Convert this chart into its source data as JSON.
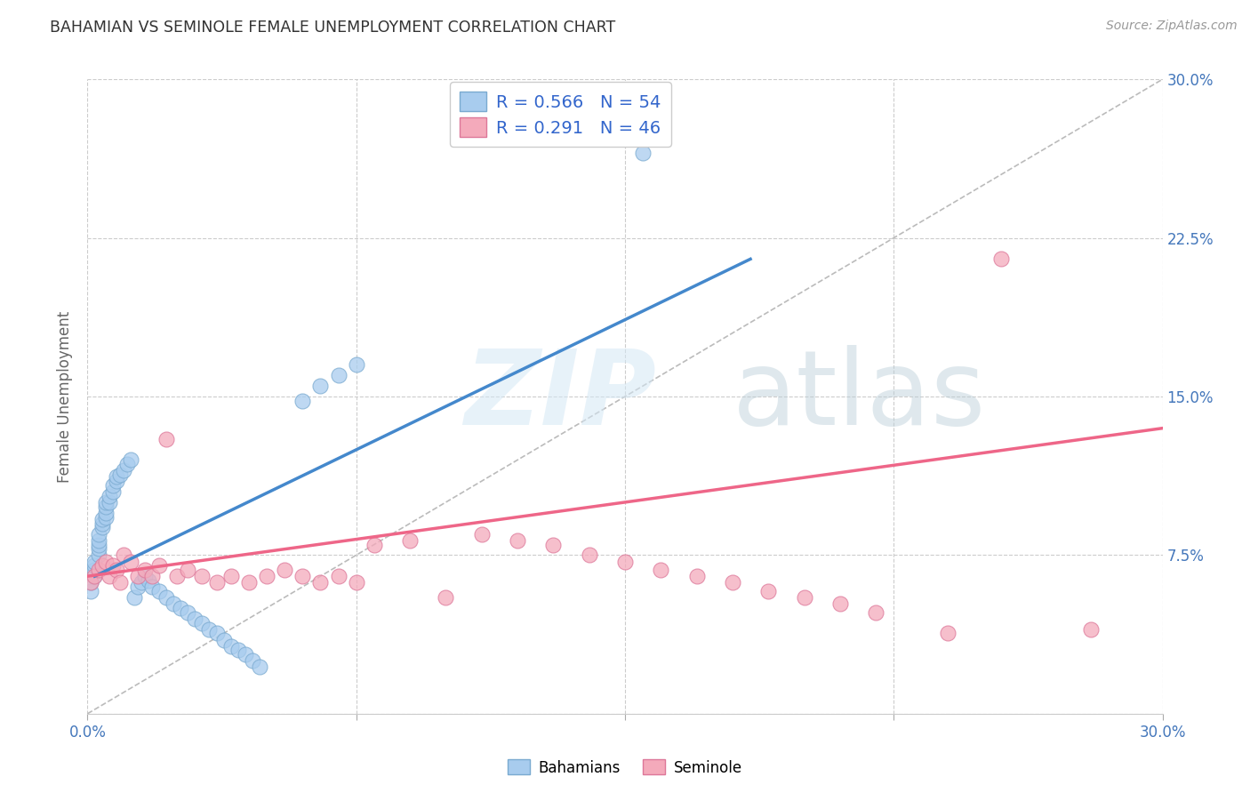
{
  "title": "BAHAMIAN VS SEMINOLE FEMALE UNEMPLOYMENT CORRELATION CHART",
  "source": "Source: ZipAtlas.com",
  "ylabel": "Female Unemployment",
  "color_blue": "#A8CCEE",
  "color_blue_edge": "#7AAAD0",
  "color_blue_line": "#4488CC",
  "color_pink": "#F4AABB",
  "color_pink_edge": "#DD7799",
  "color_pink_line": "#EE6688",
  "color_legend_text": "#3366CC",
  "color_title": "#333333",
  "color_grid": "#CCCCCC",
  "color_ref_line": "#BBBBBB",
  "color_source": "#999999",
  "color_right_axis": "#4477BB",
  "legend_R1": "R = 0.566",
  "legend_N1": "N = 54",
  "legend_R2": "R = 0.291",
  "legend_N2": "N = 46",
  "legend_label1": "Bahamians",
  "legend_label2": "Seminole",
  "bahamian_x": [
    0.001,
    0.001,
    0.002,
    0.002,
    0.002,
    0.002,
    0.003,
    0.003,
    0.003,
    0.003,
    0.003,
    0.004,
    0.004,
    0.004,
    0.005,
    0.005,
    0.005,
    0.005,
    0.006,
    0.006,
    0.007,
    0.007,
    0.008,
    0.008,
    0.009,
    0.01,
    0.011,
    0.012,
    0.013,
    0.014,
    0.015,
    0.016,
    0.017,
    0.018,
    0.02,
    0.022,
    0.024,
    0.026,
    0.028,
    0.03,
    0.032,
    0.034,
    0.036,
    0.038,
    0.04,
    0.042,
    0.044,
    0.046,
    0.048,
    0.06,
    0.065,
    0.07,
    0.075,
    0.155
  ],
  "bahamian_y": [
    0.058,
    0.062,
    0.065,
    0.068,
    0.07,
    0.072,
    0.075,
    0.078,
    0.08,
    0.082,
    0.085,
    0.088,
    0.09,
    0.092,
    0.093,
    0.095,
    0.098,
    0.1,
    0.1,
    0.103,
    0.105,
    0.108,
    0.11,
    0.112,
    0.113,
    0.115,
    0.118,
    0.12,
    0.055,
    0.06,
    0.062,
    0.065,
    0.063,
    0.06,
    0.058,
    0.055,
    0.052,
    0.05,
    0.048,
    0.045,
    0.043,
    0.04,
    0.038,
    0.035,
    0.032,
    0.03,
    0.028,
    0.025,
    0.022,
    0.148,
    0.155,
    0.16,
    0.165,
    0.265
  ],
  "seminole_x": [
    0.001,
    0.002,
    0.003,
    0.004,
    0.005,
    0.006,
    0.007,
    0.008,
    0.009,
    0.01,
    0.012,
    0.014,
    0.016,
    0.018,
    0.02,
    0.022,
    0.025,
    0.028,
    0.032,
    0.036,
    0.04,
    0.045,
    0.05,
    0.055,
    0.06,
    0.065,
    0.07,
    0.075,
    0.08,
    0.09,
    0.1,
    0.11,
    0.12,
    0.13,
    0.14,
    0.15,
    0.16,
    0.17,
    0.18,
    0.19,
    0.2,
    0.21,
    0.22,
    0.24,
    0.255,
    0.28
  ],
  "seminole_y": [
    0.062,
    0.065,
    0.068,
    0.07,
    0.072,
    0.065,
    0.07,
    0.068,
    0.062,
    0.075,
    0.072,
    0.065,
    0.068,
    0.065,
    0.07,
    0.13,
    0.065,
    0.068,
    0.065,
    0.062,
    0.065,
    0.062,
    0.065,
    0.068,
    0.065,
    0.062,
    0.065,
    0.062,
    0.08,
    0.082,
    0.055,
    0.085,
    0.082,
    0.08,
    0.075,
    0.072,
    0.068,
    0.065,
    0.062,
    0.058,
    0.055,
    0.052,
    0.048,
    0.038,
    0.215,
    0.04
  ],
  "xlim": [
    0.0,
    0.3
  ],
  "ylim": [
    0.0,
    0.3
  ],
  "blue_line_x": [
    0.002,
    0.185
  ],
  "blue_line_y": [
    0.065,
    0.215
  ],
  "pink_line_x": [
    0.0,
    0.3
  ],
  "pink_line_y": [
    0.065,
    0.135
  ],
  "ref_line_x": [
    0.0,
    0.3
  ],
  "ref_line_y": [
    0.0,
    0.3
  ],
  "xtick_positions": [
    0.0,
    0.075,
    0.15,
    0.225,
    0.3
  ],
  "ytick_positions": [
    0.0,
    0.075,
    0.15,
    0.225,
    0.3
  ],
  "right_ytick_labels": [
    "",
    "7.5%",
    "15.0%",
    "22.5%",
    "30.0%"
  ]
}
